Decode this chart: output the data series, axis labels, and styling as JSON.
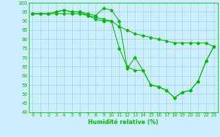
{
  "xlabel": "Humidité relative (%)",
  "ylim": [
    40,
    100
  ],
  "xlim": [
    -0.5,
    23.5
  ],
  "yticks": [
    40,
    45,
    50,
    55,
    60,
    65,
    70,
    75,
    80,
    85,
    90,
    95,
    100
  ],
  "xticks": [
    0,
    1,
    2,
    3,
    4,
    5,
    6,
    7,
    8,
    9,
    10,
    11,
    12,
    13,
    14,
    15,
    16,
    17,
    18,
    19,
    20,
    21,
    22,
    23
  ],
  "line_color": "#00bb00",
  "bg_color": "#cceeff",
  "grid_color": "#99cccc",
  "line1": [
    94,
    94,
    94,
    95,
    96,
    95,
    95,
    94,
    93,
    97,
    96,
    90,
    64,
    70,
    63,
    55,
    54,
    52,
    48,
    51,
    52,
    57,
    68,
    76
  ],
  "line2": [
    94,
    94,
    94,
    95,
    96,
    95,
    95,
    93,
    92,
    91,
    90,
    75,
    65,
    63,
    63,
    55,
    54,
    52,
    48,
    51,
    52,
    57,
    68,
    76
  ],
  "line3": [
    94,
    94,
    94,
    94,
    94,
    94,
    94,
    93,
    91,
    90,
    90,
    87,
    85,
    83,
    82,
    81,
    80,
    79,
    78,
    78,
    78,
    78,
    78,
    76
  ],
  "marker_size": 2.0,
  "line_width": 0.8,
  "tick_fontsize": 5.0,
  "xlabel_fontsize": 6.0
}
